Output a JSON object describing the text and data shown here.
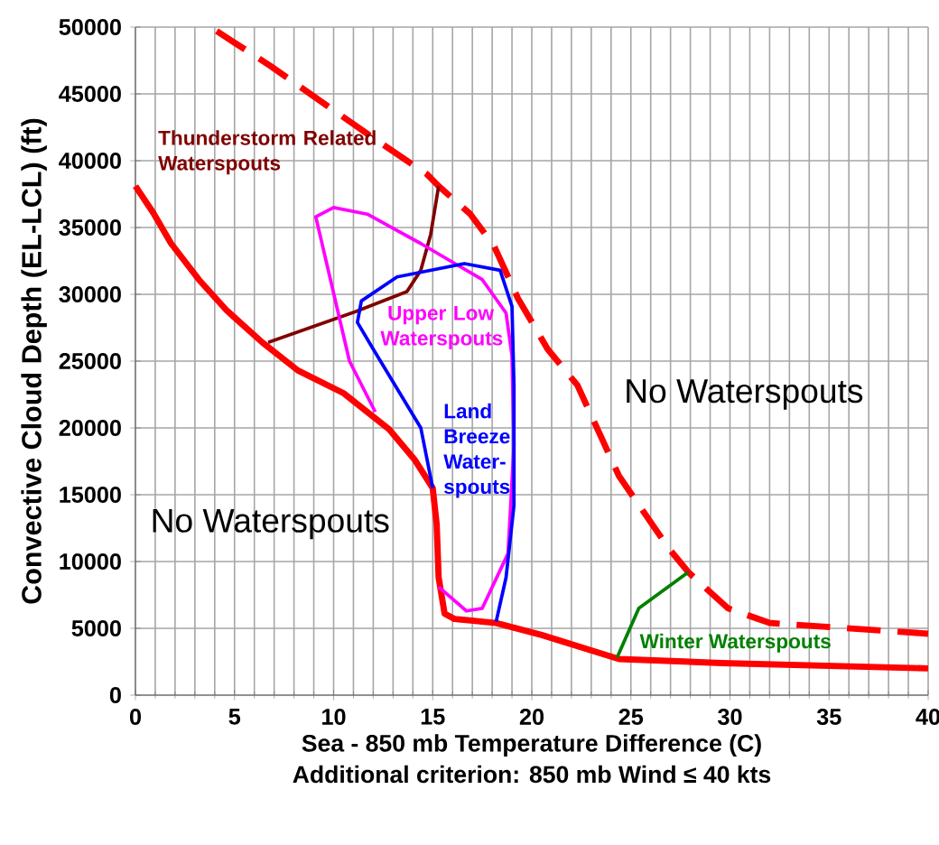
{
  "chart_data": {
    "type": "line",
    "xlabel": "Sea - 850 mb Temperature Difference (C)",
    "ylabel": "Convective Cloud Depth (EL-LCL) (ft)",
    "annotations": [
      "No Waterspouts",
      "No Waterspouts",
      "Additional criterion: 850 mb Wind ≤ 40 kts"
    ],
    "series": [
      {
        "color": "#ff0000",
        "line_style": "solid",
        "x": [
          0,
          0.9,
          1.8,
          3.2,
          4.6,
          6.4,
          8.2,
          10.5,
          12.8,
          14.1,
          15.0,
          15.2,
          15.3,
          15.6,
          16.1,
          18.2,
          20.5,
          24.4,
          29.6,
          40
        ],
        "values": [
          38100,
          36100,
          33800,
          31100,
          28800,
          26400,
          24300,
          22600,
          19900,
          17600,
          15500,
          12800,
          8800,
          6100,
          5700,
          5400,
          4500,
          2700,
          2400,
          2000
        ]
      },
      {
        "color": "#ff0000",
        "line_style": "dashed",
        "x": [
          4.1,
          6.8,
          12.0,
          14.7,
          15.3,
          16.9,
          18.1,
          19.3,
          20.8,
          22.3,
          24.4,
          26.9,
          27.9,
          29.9,
          32.0,
          40
        ],
        "values": [
          49700,
          47100,
          41700,
          39000,
          38100,
          36000,
          33600,
          29700,
          25900,
          23200,
          16400,
          11000,
          9200,
          6500,
          5400,
          4600
        ]
      },
      {
        "name": "Thunderstorm Related Waterspouts",
        "color": "#800000",
        "line_style": "solid",
        "x": [
          6.7,
          11.1,
          13.7,
          14.4,
          14.9,
          15.3
        ],
        "values": [
          26400,
          28700,
          30200,
          31800,
          34500,
          38100
        ]
      },
      {
        "name": "Upper Low Waterspouts",
        "color": "#ff00ff",
        "line_style": "solid",
        "x": [
          12.1,
          10.8,
          9.1,
          10.0,
          11.7,
          14.4,
          17.5,
          18.7,
          19.0,
          19.1,
          18.8,
          17.5,
          16.7,
          15.3
        ],
        "values": [
          21200,
          25000,
          35800,
          36500,
          36000,
          33800,
          31100,
          28600,
          25400,
          18700,
          10600,
          6500,
          6300,
          8100
        ]
      },
      {
        "name": "Land Breeze Water-spouts",
        "color": "#0000ff",
        "line_style": "solid",
        "x": [
          18.2,
          18.7,
          19.1,
          19.1,
          19.0,
          18.4,
          16.6,
          13.2,
          11.4,
          11.2,
          12.0,
          14.4,
          15.0
        ],
        "values": [
          5500,
          8800,
          14200,
          23200,
          29100,
          31800,
          32300,
          31300,
          29500,
          27900,
          25900,
          20000,
          15500
        ]
      },
      {
        "name": "Winter Waterspouts",
        "color": "#008000",
        "line_style": "solid",
        "x": [
          24.3,
          25.4,
          27.9
        ],
        "values": [
          2800,
          6500,
          9200
        ]
      }
    ],
    "xlim": [
      0,
      40
    ],
    "ylim": [
      0,
      50000
    ],
    "xticks": [
      0,
      5,
      10,
      15,
      20,
      25,
      30,
      35,
      40
    ],
    "yticks": [
      0,
      5000,
      10000,
      15000,
      20000,
      25000,
      30000,
      35000,
      40000,
      45000,
      50000
    ],
    "grid": true,
    "legend": false,
    "marker": "none"
  }
}
